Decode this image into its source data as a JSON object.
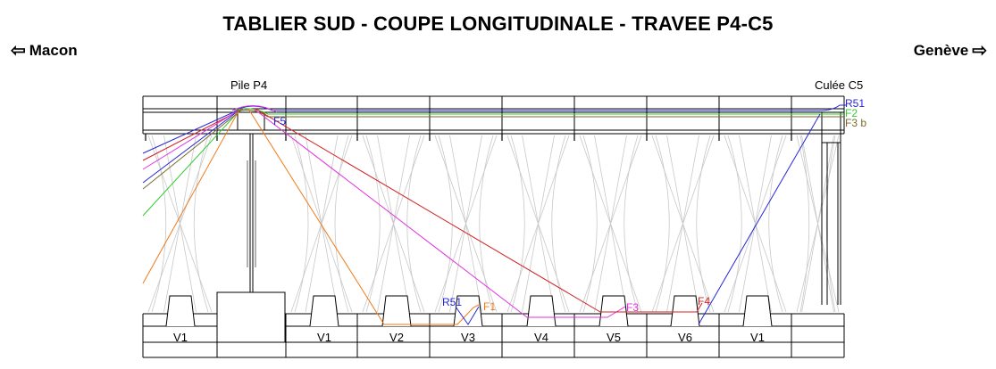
{
  "title": "TABLIER SUD - COUPE LONGITUDINALE  - TRAVEE P4-C5",
  "direction_left": {
    "arrow": "⇦",
    "label": "Macon"
  },
  "direction_right": {
    "arrow": "⇨",
    "label": "Genève"
  },
  "supports": {
    "pile": "Pile P4",
    "culee": "Culée C5"
  },
  "segment_labels": [
    "V1",
    "V1",
    "V2",
    "V3",
    "V4",
    "V5",
    "V6",
    "V1"
  ],
  "cables": [
    {
      "id": "R51",
      "label": "R51",
      "color": "#2626d9"
    },
    {
      "id": "F2",
      "label": "F2",
      "color": "#33cc33"
    },
    {
      "id": "F3b",
      "label": "F3 b",
      "color": "#7a6a2a"
    },
    {
      "id": "F5",
      "label": "F5",
      "color": "#2626d9"
    },
    {
      "id": "R51_low",
      "label": "R51",
      "color": "#2626d9"
    },
    {
      "id": "F1",
      "label": "F1",
      "color": "#f07a1a"
    },
    {
      "id": "F3",
      "label": "F3",
      "color": "#e033e0"
    },
    {
      "id": "F4",
      "label": "F4",
      "color": "#d42020"
    }
  ]
}
